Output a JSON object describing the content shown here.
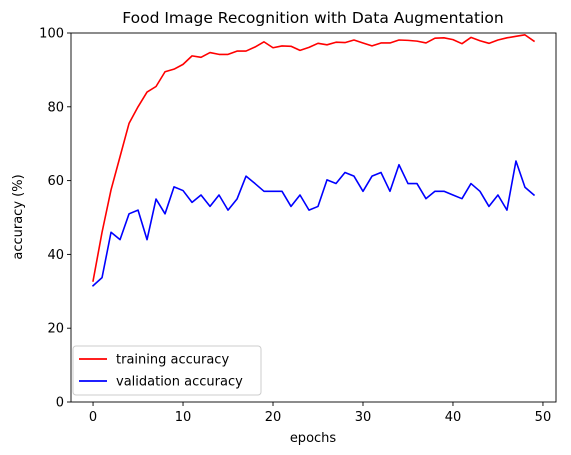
{
  "chart_data": {
    "type": "line",
    "title": "Food Image Recognition with Data Augmentation",
    "xlabel": "epochs",
    "ylabel": "accuracy (%)",
    "xlim": [
      -2.45,
      51.45
    ],
    "ylim": [
      0,
      100
    ],
    "xticks": [
      0,
      10,
      20,
      30,
      40,
      50
    ],
    "yticks": [
      0,
      20,
      40,
      60,
      80,
      100
    ],
    "grid": false,
    "legend_position": "lower-left",
    "x": [
      0,
      1,
      2,
      3,
      4,
      5,
      6,
      7,
      8,
      9,
      10,
      11,
      12,
      13,
      14,
      15,
      16,
      17,
      18,
      19,
      20,
      21,
      22,
      23,
      24,
      25,
      26,
      27,
      28,
      29,
      30,
      31,
      32,
      33,
      34,
      35,
      36,
      37,
      38,
      39,
      40,
      41,
      42,
      43,
      44,
      45,
      46,
      47,
      48,
      49
    ],
    "series": [
      {
        "name": "training accuracy",
        "color": "#ff0000",
        "values": [
          32.8,
          46.0,
          57.5,
          66.5,
          75.5,
          80.0,
          84.0,
          85.5,
          89.5,
          90.2,
          91.5,
          93.8,
          93.4,
          94.7,
          94.2,
          94.2,
          95.1,
          95.1,
          96.2,
          97.6,
          96.0,
          96.5,
          96.4,
          95.3,
          96.1,
          97.2,
          96.8,
          97.5,
          97.4,
          98.1,
          97.3,
          96.5,
          97.3,
          97.3,
          98.1,
          98.0,
          97.8,
          97.3,
          98.6,
          98.7,
          98.2,
          97.1,
          98.8,
          97.9,
          97.2,
          98.1,
          98.7,
          99.1,
          99.5,
          97.8
        ]
      },
      {
        "name": "validation accuracy",
        "color": "#0000ff",
        "values": [
          31.5,
          33.7,
          46.0,
          44.0,
          51.0,
          52.0,
          44.0,
          55.0,
          51.0,
          58.3,
          57.3,
          54.1,
          56.1,
          53.0,
          56.1,
          52.0,
          55.0,
          61.2,
          59.2,
          57.1,
          57.1,
          57.1,
          53.0,
          56.1,
          52.0,
          53.0,
          60.2,
          59.2,
          62.2,
          61.2,
          57.1,
          61.2,
          62.2,
          57.1,
          64.3,
          59.2,
          59.2,
          55.1,
          57.1,
          57.1,
          56.1,
          55.1,
          59.2,
          57.1,
          53.0,
          56.1,
          52.0,
          65.3,
          58.2,
          56.1
        ]
      }
    ]
  }
}
